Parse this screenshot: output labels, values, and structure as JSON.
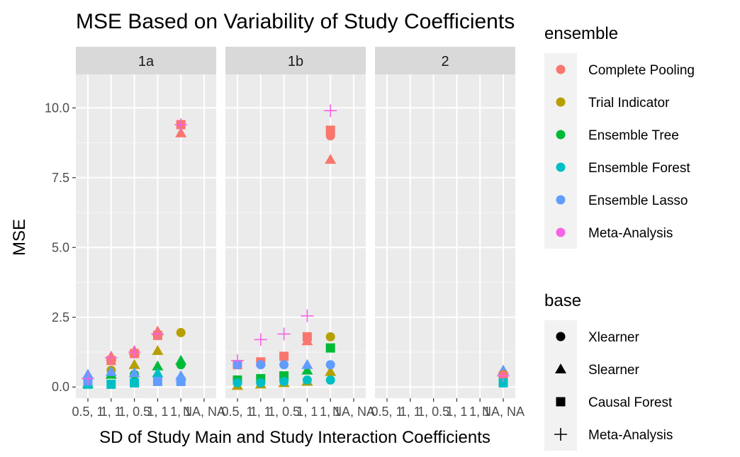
{
  "chart_data": {
    "type": "scatter",
    "title": "MSE Based on Variability of Study Coefficients",
    "xlabel": "SD of Study Main and Study Interaction Coefficients",
    "ylabel": "MSE",
    "ylim": [
      -0.4,
      11.2
    ],
    "yticks": [
      "0.0",
      "2.5",
      "5.0",
      "7.5",
      "10.0"
    ],
    "ytick_values": [
      0,
      2.5,
      5,
      7.5,
      10
    ],
    "categories": [
      "0.5, 1",
      "1, 1",
      "1, 0.5",
      "1, 1",
      "1, 1",
      "NA, NA"
    ],
    "tick_labels": [
      "0.5, 1",
      "1, 1",
      "1, 0.5",
      "1, 1",
      "1, 1",
      "NA, NA"
    ],
    "facets": [
      "1a",
      "1b",
      "2"
    ],
    "grid": true,
    "legend_position": "right",
    "legends": {
      "ensemble": {
        "title": "ensemble",
        "entries": [
          {
            "label": "Complete Pooling",
            "color": "#F8766D"
          },
          {
            "label": "Trial Indicator",
            "color": "#B79F00"
          },
          {
            "label": "Ensemble Tree",
            "color": "#00BA38"
          },
          {
            "label": "Ensemble Forest",
            "color": "#00BFC4"
          },
          {
            "label": "Ensemble Lasso",
            "color": "#619CFF"
          },
          {
            "label": "Meta-Analysis",
            "color": "#F564E3"
          }
        ]
      },
      "base": {
        "title": "base",
        "entries": [
          {
            "label": "Xlearner",
            "shape": "circle"
          },
          {
            "label": "Slearner",
            "shape": "triangle"
          },
          {
            "label": "Causal Forest",
            "shape": "square"
          },
          {
            "label": "Meta-Analysis",
            "shape": "plus"
          }
        ]
      }
    },
    "points": [
      {
        "facet": "1a",
        "x": 1,
        "ensemble": "Complete Pooling",
        "base": "Xlearner",
        "y": 0.15
      },
      {
        "facet": "1a",
        "x": 1,
        "ensemble": "Ensemble Tree",
        "base": "Slearner",
        "y": 0.12
      },
      {
        "facet": "1a",
        "x": 1,
        "ensemble": "Ensemble Forest",
        "base": "Causal Forest",
        "y": 0.1
      },
      {
        "facet": "1a",
        "x": 1,
        "ensemble": "Ensemble Lasso",
        "base": "Slearner",
        "y": 0.45
      },
      {
        "facet": "1a",
        "x": 1,
        "ensemble": "Ensemble Lasso",
        "base": "Causal Forest",
        "y": 0.22
      },
      {
        "facet": "1a",
        "x": 1,
        "ensemble": "Meta-Analysis",
        "base": "Meta-Analysis",
        "y": 0.3
      },
      {
        "facet": "1a",
        "x": 2,
        "ensemble": "Complete Pooling",
        "base": "Slearner",
        "y": 1.1
      },
      {
        "facet": "1a",
        "x": 2,
        "ensemble": "Complete Pooling",
        "base": "Causal Forest",
        "y": 0.95
      },
      {
        "facet": "1a",
        "x": 2,
        "ensemble": "Trial Indicator",
        "base": "Xlearner",
        "y": 0.6
      },
      {
        "facet": "1a",
        "x": 2,
        "ensemble": "Ensemble Tree",
        "base": "Slearner",
        "y": 0.45
      },
      {
        "facet": "1a",
        "x": 2,
        "ensemble": "Ensemble Forest",
        "base": "Causal Forest",
        "y": 0.1
      },
      {
        "facet": "1a",
        "x": 2,
        "ensemble": "Ensemble Lasso",
        "base": "Slearner",
        "y": 0.55
      },
      {
        "facet": "1a",
        "x": 2,
        "ensemble": "Meta-Analysis",
        "base": "Meta-Analysis",
        "y": 1.05
      },
      {
        "facet": "1a",
        "x": 3,
        "ensemble": "Complete Pooling",
        "base": "Slearner",
        "y": 1.3
      },
      {
        "facet": "1a",
        "x": 3,
        "ensemble": "Complete Pooling",
        "base": "Causal Forest",
        "y": 1.2
      },
      {
        "facet": "1a",
        "x": 3,
        "ensemble": "Trial Indicator",
        "base": "Slearner",
        "y": 0.8
      },
      {
        "facet": "1a",
        "x": 3,
        "ensemble": "Ensemble Tree",
        "base": "Xlearner",
        "y": 0.45
      },
      {
        "facet": "1a",
        "x": 3,
        "ensemble": "Ensemble Forest",
        "base": "Causal Forest",
        "y": 0.15
      },
      {
        "facet": "1a",
        "x": 3,
        "ensemble": "Ensemble Lasso",
        "base": "Slearner",
        "y": 0.5
      },
      {
        "facet": "1a",
        "x": 3,
        "ensemble": "Meta-Analysis",
        "base": "Meta-Analysis",
        "y": 1.25
      },
      {
        "facet": "1a",
        "x": 4,
        "ensemble": "Complete Pooling",
        "base": "Slearner",
        "y": 2.0
      },
      {
        "facet": "1a",
        "x": 4,
        "ensemble": "Complete Pooling",
        "base": "Causal Forest",
        "y": 1.85
      },
      {
        "facet": "1a",
        "x": 4,
        "ensemble": "Trial Indicator",
        "base": "Slearner",
        "y": 1.3
      },
      {
        "facet": "1a",
        "x": 4,
        "ensemble": "Ensemble Tree",
        "base": "Slearner",
        "y": 0.75
      },
      {
        "facet": "1a",
        "x": 4,
        "ensemble": "Ensemble Forest",
        "base": "Slearner",
        "y": 0.5
      },
      {
        "facet": "1a",
        "x": 4,
        "ensemble": "Ensemble Lasso",
        "base": "Causal Forest",
        "y": 0.2
      },
      {
        "facet": "1a",
        "x": 4,
        "ensemble": "Meta-Analysis",
        "base": "Meta-Analysis",
        "y": 1.9
      },
      {
        "facet": "1a",
        "x": 5,
        "ensemble": "Complete Pooling",
        "base": "Causal Forest",
        "y": 9.4
      },
      {
        "facet": "1a",
        "x": 5,
        "ensemble": "Complete Pooling",
        "base": "Slearner",
        "y": 9.1
      },
      {
        "facet": "1a",
        "x": 5,
        "ensemble": "Trial Indicator",
        "base": "Xlearner",
        "y": 1.95
      },
      {
        "facet": "1a",
        "x": 5,
        "ensemble": "Ensemble Tree",
        "base": "Slearner",
        "y": 0.95
      },
      {
        "facet": "1a",
        "x": 5,
        "ensemble": "Ensemble Tree",
        "base": "Xlearner",
        "y": 0.8
      },
      {
        "facet": "1a",
        "x": 5,
        "ensemble": "Ensemble Lasso",
        "base": "Slearner",
        "y": 0.4
      },
      {
        "facet": "1a",
        "x": 5,
        "ensemble": "Ensemble Lasso",
        "base": "Causal Forest",
        "y": 0.2
      },
      {
        "facet": "1a",
        "x": 5,
        "ensemble": "Meta-Analysis",
        "base": "Meta-Analysis",
        "y": 9.4
      },
      {
        "facet": "1b",
        "x": 1,
        "ensemble": "Complete Pooling",
        "base": "Causal Forest",
        "y": 0.8
      },
      {
        "facet": "1b",
        "x": 1,
        "ensemble": "Trial Indicator",
        "base": "Slearner",
        "y": 0.05
      },
      {
        "facet": "1b",
        "x": 1,
        "ensemble": "Ensemble Tree",
        "base": "Causal Forest",
        "y": 0.25
      },
      {
        "facet": "1b",
        "x": 1,
        "ensemble": "Ensemble Forest",
        "base": "Xlearner",
        "y": 0.15
      },
      {
        "facet": "1b",
        "x": 1,
        "ensemble": "Ensemble Lasso",
        "base": "Xlearner",
        "y": 0.8
      },
      {
        "facet": "1b",
        "x": 1,
        "ensemble": "Meta-Analysis",
        "base": "Meta-Analysis",
        "y": 0.95
      },
      {
        "facet": "1b",
        "x": 2,
        "ensemble": "Complete Pooling",
        "base": "Causal Forest",
        "y": 0.9
      },
      {
        "facet": "1b",
        "x": 2,
        "ensemble": "Trial Indicator",
        "base": "Slearner",
        "y": 0.1
      },
      {
        "facet": "1b",
        "x": 2,
        "ensemble": "Ensemble Tree",
        "base": "Causal Forest",
        "y": 0.3
      },
      {
        "facet": "1b",
        "x": 2,
        "ensemble": "Ensemble Forest",
        "base": "Xlearner",
        "y": 0.15
      },
      {
        "facet": "1b",
        "x": 2,
        "ensemble": "Ensemble Lasso",
        "base": "Xlearner",
        "y": 0.8
      },
      {
        "facet": "1b",
        "x": 2,
        "ensemble": "Meta-Analysis",
        "base": "Meta-Analysis",
        "y": 1.7
      },
      {
        "facet": "1b",
        "x": 3,
        "ensemble": "Complete Pooling",
        "base": "Causal Forest",
        "y": 1.1
      },
      {
        "facet": "1b",
        "x": 3,
        "ensemble": "Trial Indicator",
        "base": "Slearner",
        "y": 0.15
      },
      {
        "facet": "1b",
        "x": 3,
        "ensemble": "Ensemble Tree",
        "base": "Causal Forest",
        "y": 0.4
      },
      {
        "facet": "1b",
        "x": 3,
        "ensemble": "Ensemble Forest",
        "base": "Xlearner",
        "y": 0.2
      },
      {
        "facet": "1b",
        "x": 3,
        "ensemble": "Ensemble Lasso",
        "base": "Xlearner",
        "y": 0.8
      },
      {
        "facet": "1b",
        "x": 3,
        "ensemble": "Meta-Analysis",
        "base": "Meta-Analysis",
        "y": 1.9
      },
      {
        "facet": "1b",
        "x": 4,
        "ensemble": "Complete Pooling",
        "base": "Causal Forest",
        "y": 1.8
      },
      {
        "facet": "1b",
        "x": 4,
        "ensemble": "Complete Pooling",
        "base": "Slearner",
        "y": 1.65
      },
      {
        "facet": "1b",
        "x": 4,
        "ensemble": "Trial Indicator",
        "base": "Slearner",
        "y": 0.2
      },
      {
        "facet": "1b",
        "x": 4,
        "ensemble": "Ensemble Tree",
        "base": "Slearner",
        "y": 0.6
      },
      {
        "facet": "1b",
        "x": 4,
        "ensemble": "Ensemble Forest",
        "base": "Xlearner",
        "y": 0.25
      },
      {
        "facet": "1b",
        "x": 4,
        "ensemble": "Ensemble Lasso",
        "base": "Slearner",
        "y": 0.8
      },
      {
        "facet": "1b",
        "x": 4,
        "ensemble": "Meta-Analysis",
        "base": "Meta-Analysis",
        "y": 2.55
      },
      {
        "facet": "1b",
        "x": 5,
        "ensemble": "Complete Pooling",
        "base": "Causal Forest",
        "y": 9.2
      },
      {
        "facet": "1b",
        "x": 5,
        "ensemble": "Complete Pooling",
        "base": "Xlearner",
        "y": 9.0
      },
      {
        "facet": "1b",
        "x": 5,
        "ensemble": "Complete Pooling",
        "base": "Slearner",
        "y": 8.15
      },
      {
        "facet": "1b",
        "x": 5,
        "ensemble": "Trial Indicator",
        "base": "Xlearner",
        "y": 1.8
      },
      {
        "facet": "1b",
        "x": 5,
        "ensemble": "Trial Indicator",
        "base": "Slearner",
        "y": 0.55
      },
      {
        "facet": "1b",
        "x": 5,
        "ensemble": "Ensemble Tree",
        "base": "Causal Forest",
        "y": 1.4
      },
      {
        "facet": "1b",
        "x": 5,
        "ensemble": "Ensemble Forest",
        "base": "Xlearner",
        "y": 0.25
      },
      {
        "facet": "1b",
        "x": 5,
        "ensemble": "Ensemble Lasso",
        "base": "Xlearner",
        "y": 0.8
      },
      {
        "facet": "1b",
        "x": 5,
        "ensemble": "Meta-Analysis",
        "base": "Meta-Analysis",
        "y": 9.9
      },
      {
        "facet": "2",
        "x": 6,
        "ensemble": "Ensemble Lasso",
        "base": "Slearner",
        "y": 0.6
      },
      {
        "facet": "2",
        "x": 6,
        "ensemble": "Trial Indicator",
        "base": "Xlearner",
        "y": 0.45
      },
      {
        "facet": "2",
        "x": 6,
        "ensemble": "Complete Pooling",
        "base": "Causal Forest",
        "y": 0.4
      },
      {
        "facet": "2",
        "x": 6,
        "ensemble": "Ensemble Forest",
        "base": "Causal Forest",
        "y": 0.15
      },
      {
        "facet": "2",
        "x": 6,
        "ensemble": "Meta-Analysis",
        "base": "Meta-Analysis",
        "y": 0.4
      }
    ]
  }
}
